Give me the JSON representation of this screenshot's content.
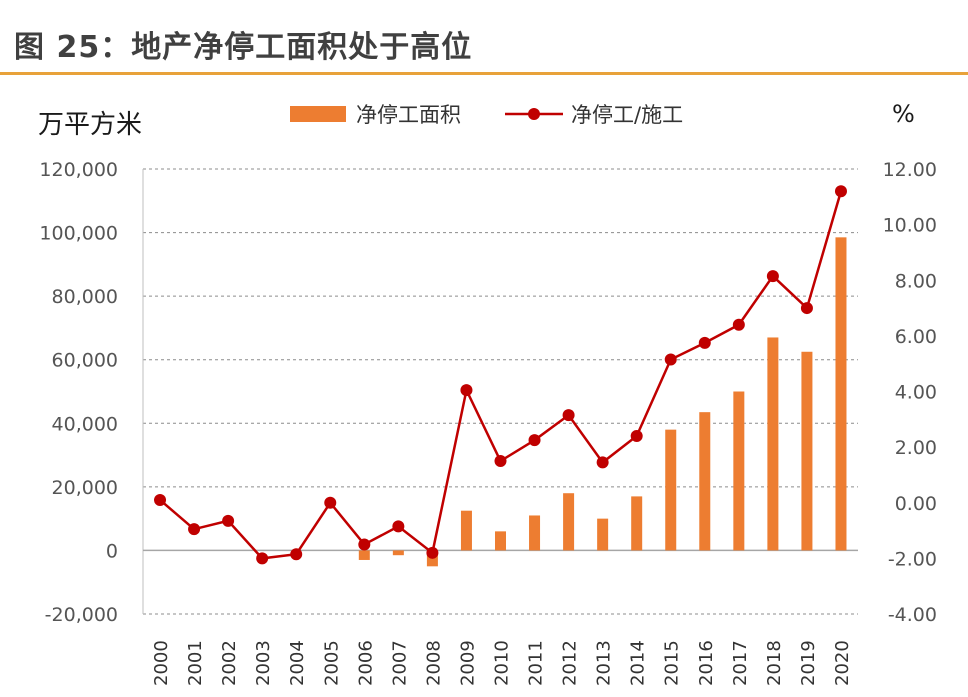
{
  "header": {
    "title": "图 25：地产净停工面积处于高位"
  },
  "chart_data": {
    "type": "bar+line",
    "categories": [
      "2000",
      "2001",
      "2002",
      "2003",
      "2004",
      "2005",
      "2006",
      "2007",
      "2008",
      "2009",
      "2010",
      "2011",
      "2012",
      "2013",
      "2014",
      "2015",
      "2016",
      "2017",
      "2018",
      "2019",
      "2020"
    ],
    "y_left": {
      "label": "万平方米",
      "range": [
        -20000,
        120000
      ],
      "ticks": [
        "-20,000",
        "0",
        "20,000",
        "40,000",
        "60,000",
        "80,000",
        "100,000",
        "120,000"
      ]
    },
    "y_right": {
      "label": "%",
      "range": [
        -4,
        12
      ],
      "ticks": [
        "-4.00",
        "-2.00",
        "0.00",
        "2.00",
        "4.00",
        "6.00",
        "8.00",
        "10.00",
        "12.00"
      ]
    },
    "series": [
      {
        "name": "净停工面积",
        "kind": "bar",
        "axis": "left",
        "color": "#ed7d31",
        "values": [
          0,
          0,
          0,
          0,
          0,
          0,
          -3000,
          -1500,
          -5000,
          12500,
          6000,
          11000,
          18000,
          10000,
          17000,
          38000,
          43500,
          50000,
          67000,
          62500,
          98500
        ]
      },
      {
        "name": "净停工/施工",
        "kind": "line",
        "axis": "right",
        "color": "#c00000",
        "values": [
          0.1,
          -0.95,
          -0.65,
          -2.0,
          -1.85,
          0.0,
          -1.5,
          -0.85,
          -1.8,
          4.05,
          1.5,
          2.25,
          3.15,
          1.45,
          2.4,
          5.15,
          5.75,
          6.4,
          8.15,
          7.0,
          11.2
        ]
      }
    ],
    "grid": true,
    "legend": "top-center"
  }
}
